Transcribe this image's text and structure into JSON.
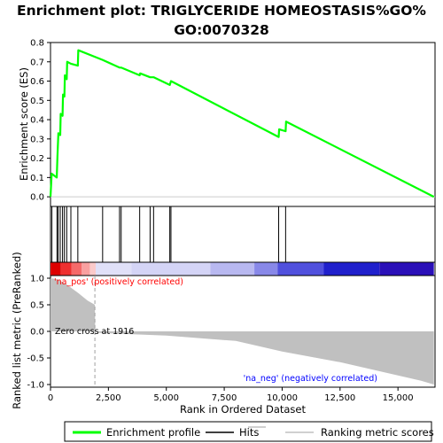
{
  "chart_data": {
    "type": "line",
    "title_line1": "Enrichment plot: TRIGLYCERIDE HOMEOSTASIS%GO%",
    "title_line2": "GO:0070328",
    "xlabel": "Rank in Ordered Dataset",
    "ylabel_top": "Enrichment score (ES)",
    "ylabel_bottom": "Ranked list metric (PreRanked)",
    "xlim": [
      0,
      16600
    ],
    "es_ylim": [
      -0.05,
      0.8
    ],
    "metric_ylim": [
      -1.05,
      1.05
    ],
    "x_ticks": [
      0,
      2500,
      5000,
      7500,
      10000,
      12500,
      15000
    ],
    "x_tick_labels": [
      "0",
      "2,500",
      "5,000",
      "7,500",
      "10,000",
      "12,500",
      "15,000"
    ],
    "es_ticks": [
      0.0,
      0.1,
      0.2,
      0.3,
      0.4,
      0.5,
      0.6,
      0.7,
      0.8
    ],
    "es_tick_labels": [
      "0.0",
      "0.1",
      "0.2",
      "0.3",
      "0.4",
      "0.5",
      "0.6",
      "0.7",
      "0.8"
    ],
    "metric_ticks": [
      1.0,
      0.5,
      0.0,
      -0.5,
      -1.0
    ],
    "metric_tick_labels": [
      "1.0",
      "0.5",
      "0.0",
      "-0.5",
      "-1.0"
    ],
    "hits": [
      60,
      280,
      330,
      420,
      520,
      600,
      700,
      880,
      1180,
      2250,
      2980,
      3050,
      3850,
      4300,
      4450,
      5150,
      5200,
      9850,
      10150
    ],
    "es_curve": [
      [
        0,
        0.0
      ],
      [
        50,
        0.12
      ],
      [
        270,
        0.1
      ],
      [
        300,
        0.21
      ],
      [
        340,
        0.33
      ],
      [
        420,
        0.32
      ],
      [
        440,
        0.43
      ],
      [
        520,
        0.42
      ],
      [
        540,
        0.53
      ],
      [
        600,
        0.52
      ],
      [
        620,
        0.63
      ],
      [
        700,
        0.61
      ],
      [
        720,
        0.7
      ],
      [
        880,
        0.69
      ],
      [
        1180,
        0.68
      ],
      [
        1200,
        0.76
      ],
      [
        2250,
        0.71
      ],
      [
        2980,
        0.67
      ],
      [
        3050,
        0.67
      ],
      [
        3850,
        0.63
      ],
      [
        3870,
        0.64
      ],
      [
        4300,
        0.62
      ],
      [
        4450,
        0.62
      ],
      [
        5150,
        0.58
      ],
      [
        5200,
        0.6
      ],
      [
        9850,
        0.31
      ],
      [
        9870,
        0.35
      ],
      [
        10150,
        0.34
      ],
      [
        10170,
        0.39
      ],
      [
        16550,
        0.0
      ]
    ],
    "metric_curve": [
      [
        0,
        1.0
      ],
      [
        300,
        0.98
      ],
      [
        700,
        0.88
      ],
      [
        1200,
        0.72
      ],
      [
        1600,
        0.58
      ],
      [
        1916,
        0.5
      ],
      [
        1930,
        0.0
      ],
      [
        2100,
        -0.03
      ],
      [
        5000,
        -0.08
      ],
      [
        8000,
        -0.18
      ],
      [
        10000,
        -0.38
      ],
      [
        12500,
        -0.58
      ],
      [
        14500,
        -0.78
      ],
      [
        16000,
        -0.93
      ],
      [
        16550,
        -1.0
      ]
    ],
    "zero_cross_x": 1916,
    "zero_cross_label": "Zero cross at 1916",
    "pos_label": "'na_pos' (positively correlated)",
    "neg_label": "'na_neg' (negatively correlated)",
    "legend": [
      "Enrichment profile",
      "Hits",
      "Ranking metric scores"
    ],
    "colors": {
      "es_line": "#00ff00",
      "hits": "#000000",
      "metric_fill": "#c0c0c0",
      "pos_text": "#ff0000",
      "neg_text": "#0000ff",
      "zero_cross_line": "#a0a0a0"
    },
    "heatmap_segments": [
      {
        "x0": 0,
        "x1": 450,
        "color": "#dd0000"
      },
      {
        "x0": 450,
        "x1": 900,
        "color": "#ee3030"
      },
      {
        "x0": 900,
        "x1": 1350,
        "color": "#f56a6a"
      },
      {
        "x0": 1350,
        "x1": 1700,
        "color": "#f9a0a0"
      },
      {
        "x0": 1700,
        "x1": 1950,
        "color": "#fbcaca"
      },
      {
        "x0": 1950,
        "x1": 3500,
        "color": "#e0e0f8"
      },
      {
        "x0": 3500,
        "x1": 6900,
        "color": "#d4d4f6"
      },
      {
        "x0": 6900,
        "x1": 8800,
        "color": "#b8b8f0"
      },
      {
        "x0": 8800,
        "x1": 9800,
        "color": "#8888e8"
      },
      {
        "x0": 9800,
        "x1": 11800,
        "color": "#5050dd"
      },
      {
        "x0": 11800,
        "x1": 14200,
        "color": "#2020cc"
      },
      {
        "x0": 14200,
        "x1": 16550,
        "color": "#2a10b8"
      }
    ]
  }
}
